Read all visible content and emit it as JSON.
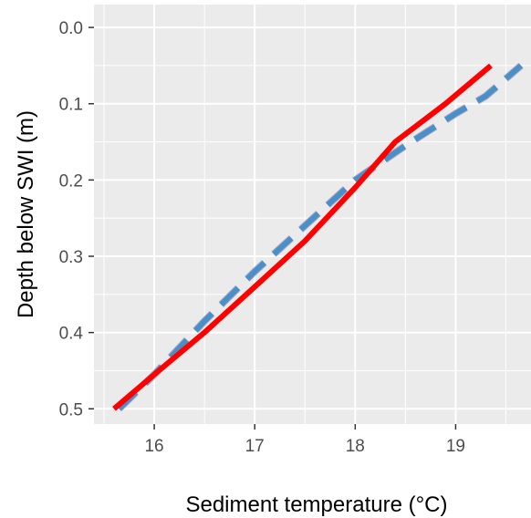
{
  "chart_data": {
    "type": "line",
    "title": "",
    "xlabel": "Sediment temperature (°C)",
    "ylabel": "Depth below SWI (m)",
    "xlim": [
      15.4,
      19.75
    ],
    "ylim": [
      0.52,
      -0.03
    ],
    "y_reversed": true,
    "grid": true,
    "legend": "none",
    "x_ticks": [
      16,
      17,
      18,
      19
    ],
    "x_tick_labels": [
      "16",
      "17",
      "18",
      "19"
    ],
    "y_ticks": [
      0.0,
      0.1,
      0.2,
      0.3,
      0.4,
      0.5
    ],
    "y_tick_labels": [
      "0.0",
      "0.1",
      "0.2",
      "0.3",
      "0.4",
      "0.5"
    ],
    "series": [
      {
        "style": "dashed",
        "color": "#9b8fb5",
        "x": [
          15.65,
          16.0,
          16.5,
          17.0,
          17.5,
          18.0,
          18.5,
          19.0,
          19.3,
          19.65
        ],
        "y": [
          0.5,
          0.455,
          0.385,
          0.32,
          0.26,
          0.2,
          0.155,
          0.113,
          0.09,
          0.05
        ]
      },
      {
        "style": "dashed",
        "color": "#4a90c8",
        "x": [
          15.65,
          16.0,
          16.5,
          17.0,
          17.5,
          18.0,
          18.5,
          19.0,
          19.3,
          19.65
        ],
        "y": [
          0.5,
          0.455,
          0.385,
          0.32,
          0.26,
          0.2,
          0.155,
          0.113,
          0.09,
          0.05
        ]
      },
      {
        "style": "solid",
        "color": "#ff0000",
        "x": [
          15.6,
          16.0,
          16.5,
          17.0,
          17.5,
          18.0,
          18.4,
          18.9,
          19.35
        ],
        "y": [
          0.5,
          0.455,
          0.4,
          0.34,
          0.28,
          0.21,
          0.15,
          0.1,
          0.05
        ]
      }
    ]
  }
}
